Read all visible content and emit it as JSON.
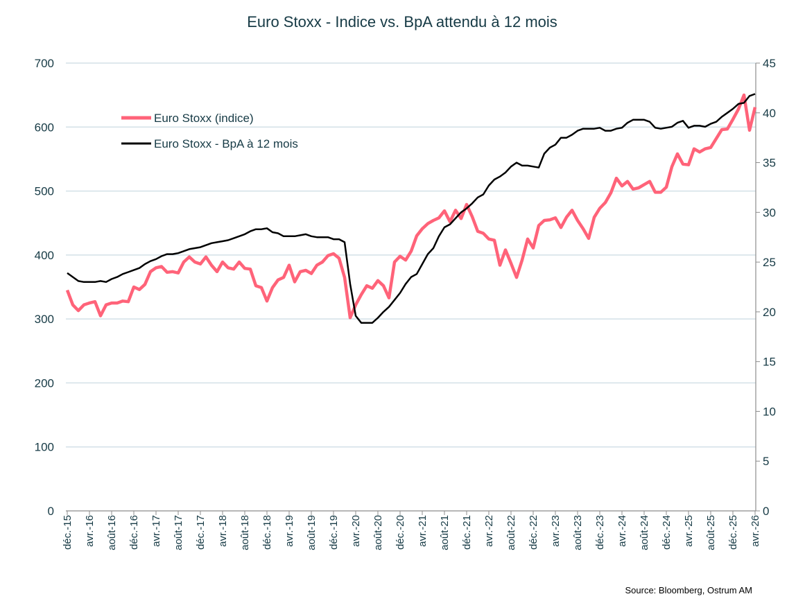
{
  "chart_data": {
    "type": "line",
    "title": "Euro Stoxx - Indice vs. BpA attendu à 12 mois",
    "source": "Source: Bloomberg,  Ostrum AM",
    "x_tick_labels": [
      "déc.-15",
      "avr.-16",
      "août-16",
      "déc.-16",
      "avr.-17",
      "août-17",
      "déc.-17",
      "avr.-18",
      "août-18",
      "déc.-18",
      "avr.-19",
      "août-19",
      "déc.-19",
      "avr.-20",
      "août-20",
      "déc.-20",
      "avr.-21",
      "août-21",
      "déc.-21",
      "avr.-22",
      "août-22",
      "déc.-22",
      "avr.-23",
      "août-23",
      "déc.-23",
      "avr.-24",
      "août-24",
      "déc.-24",
      "avr.-25",
      "août-25",
      "déc.-25",
      "avr.-26"
    ],
    "x_frequency": "monthly",
    "y_left": {
      "range": [
        0,
        700
      ],
      "ticks": [
        0,
        100,
        200,
        300,
        400,
        500,
        600,
        700
      ]
    },
    "y_right": {
      "range": [
        0,
        45
      ],
      "ticks": [
        0,
        5,
        10,
        15,
        20,
        25,
        30,
        35,
        40,
        45
      ]
    },
    "grid": "horizontal",
    "legend_position": "top-left",
    "series": [
      {
        "name": "Euro Stoxx (indice)",
        "axis": "left",
        "color": "#ff6379",
        "values": [
          345,
          322,
          313,
          322,
          325,
          327,
          305,
          322,
          325,
          325,
          328,
          327,
          350,
          346,
          354,
          374,
          380,
          382,
          373,
          374,
          372,
          389,
          397,
          389,
          386,
          397,
          384,
          374,
          389,
          380,
          378,
          389,
          379,
          378,
          352,
          349,
          328,
          349,
          361,
          365,
          384,
          358,
          374,
          376,
          371,
          384,
          389,
          399,
          402,
          395,
          365,
          302,
          322,
          338,
          352,
          348,
          360,
          352,
          333,
          389,
          398,
          392,
          406,
          430,
          441,
          449,
          454,
          458,
          469,
          452,
          470,
          457,
          479,
          460,
          437,
          434,
          425,
          423,
          384,
          408,
          387,
          365,
          392,
          425,
          411,
          446,
          454,
          455,
          458,
          443,
          459,
          470,
          454,
          441,
          426,
          459,
          473,
          482,
          497,
          520,
          508,
          515,
          503,
          505,
          510,
          515,
          498,
          498,
          506,
          538,
          558,
          542,
          541,
          566,
          561,
          566,
          568,
          582,
          596,
          597,
          612,
          628,
          650,
          595,
          631
        ]
      },
      {
        "name": "Euro Stoxx - BpA à 12 mois",
        "axis": "right",
        "color": "#000000",
        "values": [
          23.9,
          23.5,
          23.1,
          23.0,
          23.0,
          23.0,
          23.1,
          23.0,
          23.3,
          23.5,
          23.8,
          24.0,
          24.2,
          24.4,
          24.8,
          25.1,
          25.3,
          25.6,
          25.8,
          25.8,
          25.9,
          26.1,
          26.3,
          26.4,
          26.5,
          26.7,
          26.9,
          27.0,
          27.1,
          27.2,
          27.4,
          27.6,
          27.8,
          28.1,
          28.3,
          28.3,
          28.4,
          28.0,
          27.9,
          27.6,
          27.6,
          27.6,
          27.7,
          27.8,
          27.6,
          27.5,
          27.5,
          27.5,
          27.3,
          27.3,
          27.0,
          22.8,
          19.6,
          18.9,
          18.9,
          18.9,
          19.4,
          20.0,
          20.5,
          21.2,
          21.9,
          22.8,
          23.5,
          23.8,
          24.8,
          25.8,
          26.4,
          27.6,
          28.5,
          28.8,
          29.4,
          30.0,
          30.4,
          30.9,
          31.5,
          31.8,
          32.7,
          33.3,
          33.6,
          34.0,
          34.6,
          35.0,
          34.7,
          34.7,
          34.6,
          34.5,
          35.9,
          36.5,
          36.8,
          37.5,
          37.5,
          37.8,
          38.2,
          38.4,
          38.4,
          38.4,
          38.5,
          38.2,
          38.2,
          38.4,
          38.5,
          39.0,
          39.3,
          39.3,
          39.3,
          39.1,
          38.5,
          38.4,
          38.5,
          38.6,
          39.0,
          39.2,
          38.5,
          38.7,
          38.7,
          38.6,
          38.9,
          39.1,
          39.6,
          40.0,
          40.4,
          40.9,
          41.0,
          41.7,
          41.9
        ]
      }
    ]
  }
}
